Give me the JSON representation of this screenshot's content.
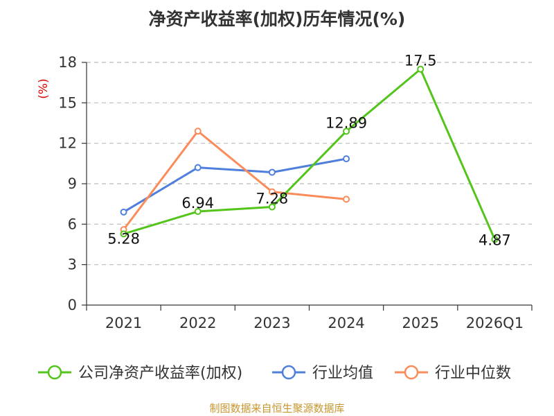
{
  "chart_data": {
    "type": "line",
    "title": "净资产收益率(加权)历年情况(%)",
    "ylabel": "(%)",
    "xlabel": "",
    "categories": [
      "2021",
      "2022",
      "2023",
      "2024",
      "2025",
      "2026Q1"
    ],
    "ylim": [
      0,
      18
    ],
    "yticks": [
      0,
      3,
      6,
      9,
      12,
      15,
      18
    ],
    "grid": true,
    "legend_position": "bottom",
    "series": [
      {
        "name": "公司净资产收益率(加权)",
        "color": "#52c41a",
        "values": [
          5.28,
          6.94,
          7.28,
          12.89,
          17.5,
          4.87
        ],
        "labels": [
          "5.28",
          "6.94",
          "7.28",
          "12.89",
          "17.5",
          "4.87"
        ]
      },
      {
        "name": "行业均值",
        "color": "#4f7fdc",
        "values": [
          6.9,
          10.2,
          9.85,
          10.85,
          null,
          null
        ]
      },
      {
        "name": "行业中位数",
        "color": "#fa8c5a",
        "values": [
          5.6,
          12.9,
          8.4,
          7.85,
          null,
          null
        ]
      }
    ]
  },
  "footer": {
    "source": "制图数据来自恒生聚源数据库"
  }
}
